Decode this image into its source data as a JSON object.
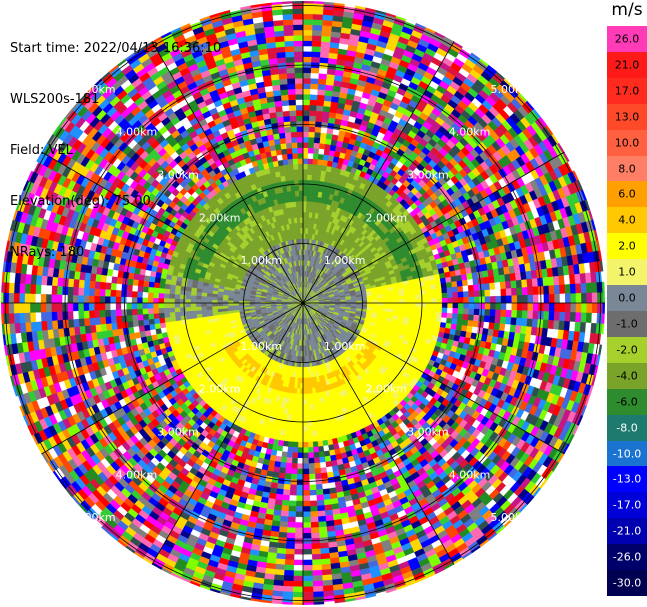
{
  "header": {
    "start_time": "Start time: 2022/04/13 16:36:10",
    "instrument": "WLS200s-181",
    "field": "Field: VEL",
    "elevation": "Elevation(deg): 75.00",
    "nrays": "NRays: 180"
  },
  "colorbar": {
    "unit": "m/s",
    "segments": [
      {
        "label": "26.0",
        "color": "#ff3bb8"
      },
      {
        "label": "21.0",
        "color": "#ff1a1a"
      },
      {
        "label": "17.0",
        "color": "#ff2b1e"
      },
      {
        "label": "13.0",
        "color": "#ff4a2a"
      },
      {
        "label": "10.0",
        "color": "#ff6040"
      },
      {
        "label": "8.0",
        "color": "#ff7f66"
      },
      {
        "label": "6.0",
        "color": "#ffa000"
      },
      {
        "label": "4.0",
        "color": "#ffc800"
      },
      {
        "label": "2.0",
        "color": "#ffff00"
      },
      {
        "label": "1.0",
        "color": "#f4f46a"
      },
      {
        "label": "0.0",
        "color": "#7a8796"
      },
      {
        "label": "-1.0",
        "color": "#6d6d6d"
      },
      {
        "label": "-2.0",
        "color": "#a6d12c"
      },
      {
        "label": "-4.0",
        "color": "#7aa32a"
      },
      {
        "label": "-6.0",
        "color": "#2e8b2e"
      },
      {
        "label": "-8.0",
        "color": "#1e7a6e"
      },
      {
        "label": "-10.0",
        "color": "#1a73d0"
      },
      {
        "label": "-13.0",
        "color": "#0000ff"
      },
      {
        "label": "-17.0",
        "color": "#0000d8"
      },
      {
        "label": "-21.0",
        "color": "#0000b0"
      },
      {
        "label": "-26.0",
        "color": "#00006a"
      },
      {
        "label": "-30.0",
        "color": "#000050"
      }
    ]
  },
  "range_rings": {
    "labels": [
      "1.00km",
      "2.00km",
      "3.00km",
      "4.00km",
      "5.00km"
    ]
  },
  "noise_colors": [
    "#ff00ff",
    "#0000ff",
    "#ff69b4",
    "#1e90ff",
    "#32cd32",
    "#808080",
    "#ff4500",
    "#ffd700",
    "#ff0000",
    "#00008b",
    "#ffffff",
    "#228b22",
    "#ff8c00",
    "#7fff00",
    "#dc143c",
    "#4169e1",
    "#c71585",
    "#2f4f4f"
  ]
}
